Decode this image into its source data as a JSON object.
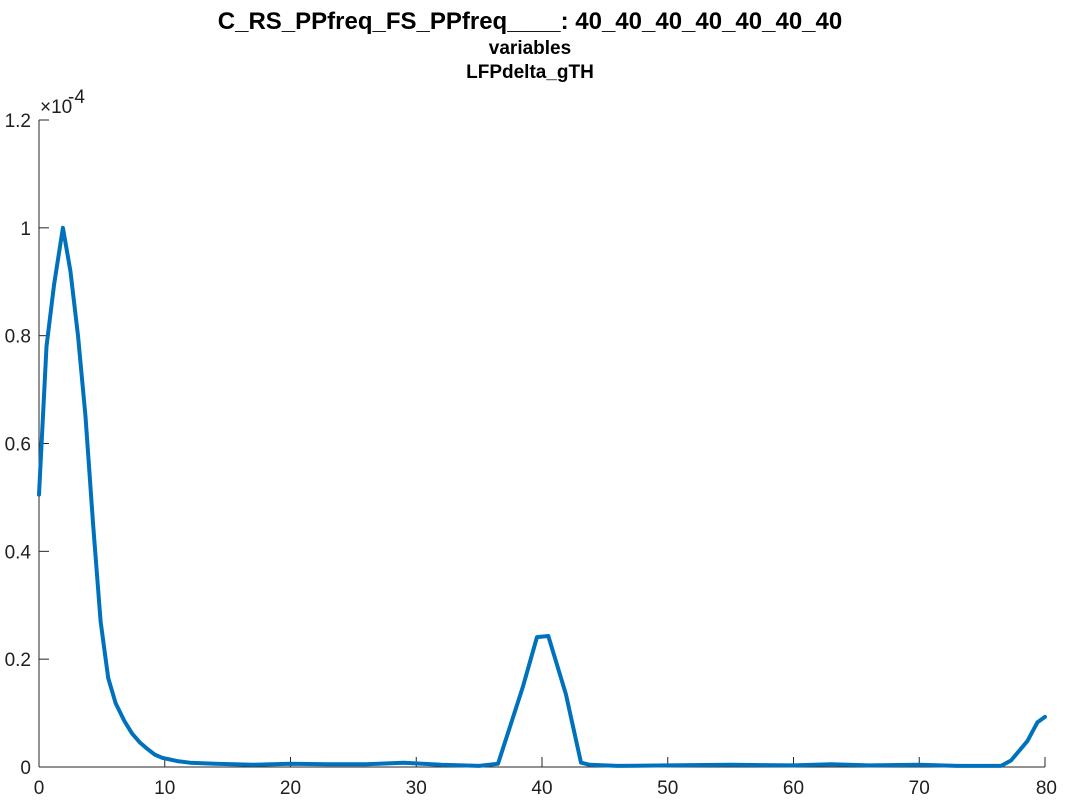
{
  "chart_data": {
    "type": "line",
    "title": "C_RS_PPfreq_FS_PPfreq____: 40_40_40_40_40_40_40",
    "subtitle_lines": [
      "variables",
      "LFPdelta_gTH"
    ],
    "xlabel": "",
    "ylabel": "",
    "xlim": [
      0,
      80
    ],
    "ylim": [
      0,
      0.00012
    ],
    "y_exponent_label": "×10",
    "y_exponent_value": "-4",
    "x_ticks": [
      0,
      10,
      20,
      30,
      40,
      50,
      60,
      70,
      80
    ],
    "x_tick_labels": [
      "0",
      "10",
      "20",
      "30",
      "40",
      "50",
      "60",
      "70",
      "80"
    ],
    "y_ticks": [
      0,
      2e-05,
      4e-05,
      6e-05,
      8e-05,
      0.0001,
      0.00012
    ],
    "y_tick_labels": [
      "0",
      "0.2",
      "0.4",
      "0.6",
      "0.8",
      "1",
      "1.2"
    ],
    "grid": false,
    "line_color": "#0072BD",
    "series": [
      {
        "x": [
          0,
          0.6,
          1.2,
          1.9,
          2.5,
          3.1,
          3.7,
          4.3,
          4.9,
          5.5,
          6.1,
          6.8,
          7.4,
          8.0,
          8.6,
          9.2,
          9.8,
          11,
          12,
          14,
          17,
          20,
          23,
          26,
          29,
          32,
          35,
          36.5,
          38.5,
          39.6,
          40.5,
          41.9,
          43.1,
          43.8,
          46,
          50,
          55,
          60,
          63,
          66,
          70,
          73,
          76.5,
          77.3,
          78.6,
          79.4,
          80
        ],
        "y": [
          5.05e-05,
          7.8e-05,
          8.95e-05,
          0.0001,
          9.2e-05,
          8e-05,
          6.5e-05,
          4.5e-05,
          2.7e-05,
          1.65e-05,
          1.18e-05,
          8.5e-06,
          6.2e-06,
          4.6e-06,
          3.4e-06,
          2.3e-06,
          1.7e-06,
          1.1e-06,
          8e-07,
          6e-07,
          4e-07,
          6e-07,
          5e-07,
          5e-07,
          8e-07,
          4e-07,
          2e-07,
          6e-07,
          1.5e-05,
          2.41e-05,
          2.43e-05,
          1.35e-05,
          8e-07,
          4e-07,
          2e-07,
          3e-07,
          4e-07,
          3e-07,
          5e-07,
          3e-07,
          4e-07,
          2e-07,
          2e-07,
          1.2e-06,
          4.8e-06,
          8.3e-06,
          9.3e-06
        ]
      }
    ]
  }
}
